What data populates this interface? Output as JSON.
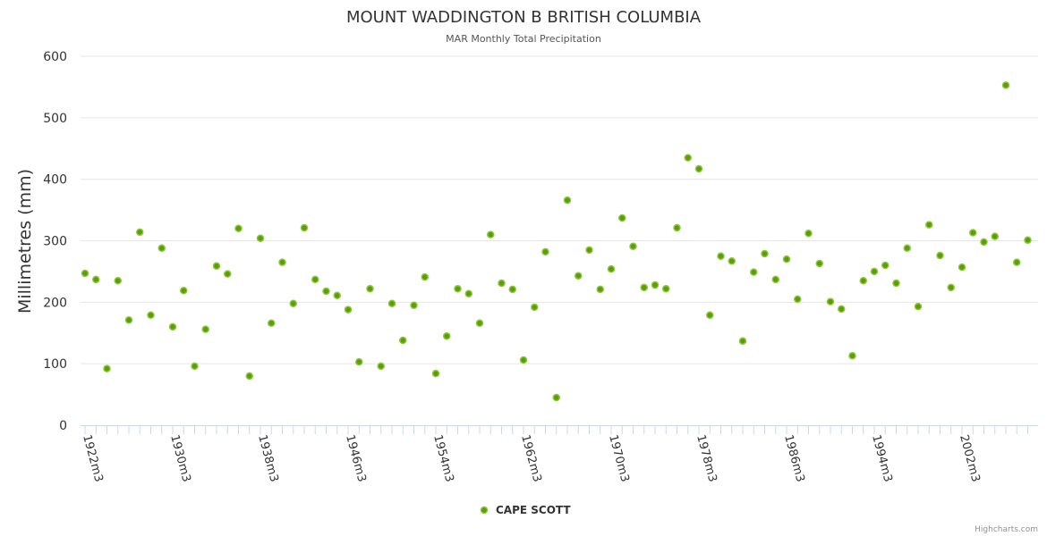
{
  "chart_data": {
    "type": "scatter",
    "title": "MOUNT WADDINGTON B BRITISH COLUMBIA",
    "subtitle": "MAR Monthly Total Precipitation",
    "xlabel": "",
    "ylabel": "Millimetres (mm)",
    "ylim": [
      0,
      600
    ],
    "yticks": [
      0,
      100,
      200,
      300,
      400,
      500,
      600
    ],
    "x_start_year": 1922,
    "x_tick_labels": [
      "1922m3",
      "1930m3",
      "1938m3",
      "1946m3",
      "1954m3",
      "1962m3",
      "1970m3",
      "1978m3",
      "1986m3",
      "1994m3",
      "2002m3"
    ],
    "grid": true,
    "legend_position": "bottom-center",
    "series": [
      {
        "name": "CAPE SCOTT",
        "color": "#5a9e00",
        "values": [
          247,
          237,
          92,
          235,
          171,
          314,
          179,
          288,
          160,
          219,
          96,
          156,
          259,
          246,
          320,
          80,
          304,
          166,
          265,
          198,
          321,
          237,
          218,
          211,
          188,
          103,
          222,
          96,
          198,
          138,
          195,
          241,
          84,
          145,
          222,
          214,
          166,
          310,
          231,
          221,
          106,
          192,
          282,
          45,
          366,
          243,
          285,
          221,
          254,
          337,
          291,
          224,
          228,
          222,
          321,
          435,
          417,
          179,
          275,
          267,
          137,
          249,
          279,
          237,
          270,
          205,
          312,
          263,
          201,
          189,
          113,
          235,
          250,
          260,
          231,
          288,
          193,
          326,
          276,
          224,
          257,
          313,
          298,
          307,
          553,
          265,
          301
        ]
      }
    ]
  },
  "credits": "Highcharts.com"
}
